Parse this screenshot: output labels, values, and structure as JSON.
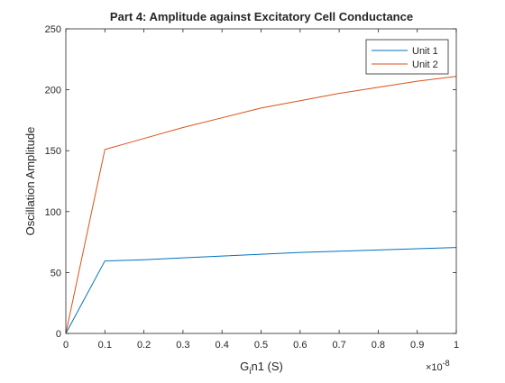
{
  "chart_data": {
    "type": "line",
    "title": "Part 4: Amplitude against Excitatory Cell Conductance",
    "xlabel": "G_i n1 (S)",
    "xlabel_parts": {
      "main": "G",
      "sub": "i",
      "rest": "n1 (S)"
    },
    "ylabel": "Oscillation Amplitude",
    "xlim": [
      0,
      1
    ],
    "ylim": [
      0,
      250
    ],
    "x_exponent": {
      "base": "×10",
      "power": "-8"
    },
    "x_ticks": [
      "0",
      "0.1",
      "0.2",
      "0.3",
      "0.4",
      "0.5",
      "0.6",
      "0.7",
      "0.8",
      "0.9",
      "1"
    ],
    "y_ticks": [
      "0",
      "50",
      "100",
      "150",
      "200",
      "250"
    ],
    "grid": false,
    "legend_position": "top-right",
    "series": [
      {
        "name": "Unit 1",
        "color": "#0072BD",
        "x": [
          0,
          0.1,
          0.2,
          0.3,
          0.4,
          0.5,
          0.6,
          0.7,
          0.8,
          0.9,
          1.0
        ],
        "values": [
          0,
          59.5,
          60.5,
          62,
          63.5,
          65,
          66.5,
          67.5,
          68.5,
          69.5,
          70.5
        ]
      },
      {
        "name": "Unit 2",
        "color": "#D95319",
        "x": [
          0,
          0.1,
          0.2,
          0.3,
          0.4,
          0.5,
          0.6,
          0.7,
          0.8,
          0.9,
          1.0
        ],
        "values": [
          0,
          151,
          160,
          169,
          177,
          185,
          191,
          197,
          202,
          207,
          211
        ]
      }
    ]
  }
}
